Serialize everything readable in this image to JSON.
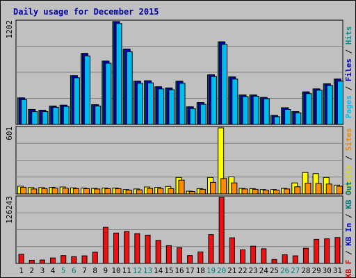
{
  "chart_data": {
    "type": "bar",
    "title": "Daily usage for December 2015",
    "days": [
      {
        "label": "1",
        "weekend": false
      },
      {
        "label": "2",
        "weekend": false
      },
      {
        "label": "3",
        "weekend": false
      },
      {
        "label": "4",
        "weekend": false
      },
      {
        "label": "5",
        "weekend": true
      },
      {
        "label": "6",
        "weekend": true
      },
      {
        "label": "7",
        "weekend": false
      },
      {
        "label": "8",
        "weekend": false
      },
      {
        "label": "9",
        "weekend": false
      },
      {
        "label": "10",
        "weekend": false
      },
      {
        "label": "11",
        "weekend": false
      },
      {
        "label": "12",
        "weekend": true
      },
      {
        "label": "13",
        "weekend": true
      },
      {
        "label": "14",
        "weekend": false
      },
      {
        "label": "15",
        "weekend": false
      },
      {
        "label": "16",
        "weekend": false
      },
      {
        "label": "17",
        "weekend": false
      },
      {
        "label": "18",
        "weekend": false
      },
      {
        "label": "19",
        "weekend": true
      },
      {
        "label": "20",
        "weekend": true
      },
      {
        "label": "21",
        "weekend": false
      },
      {
        "label": "22",
        "weekend": false
      },
      {
        "label": "23",
        "weekend": false
      },
      {
        "label": "24",
        "weekend": false
      },
      {
        "label": "25",
        "weekend": false
      },
      {
        "label": "26",
        "weekend": true
      },
      {
        "label": "27",
        "weekend": true
      },
      {
        "label": "28",
        "weekend": false
      },
      {
        "label": "29",
        "weekend": false
      },
      {
        "label": "30",
        "weekend": false
      },
      {
        "label": "31",
        "weekend": false
      }
    ],
    "panels": [
      {
        "id": "hits",
        "max_label": "1202",
        "ymax": 1202,
        "legend": [
          {
            "text": "Pages",
            "color": "#00bbee"
          },
          {
            "text": " / ",
            "color": "#000000"
          },
          {
            "text": "Files",
            "color": "#0000cc"
          },
          {
            "text": " / ",
            "color": "#000000"
          },
          {
            "text": "Hits",
            "color": "#009090"
          }
        ],
        "series": [
          {
            "name": "Hits",
            "color": "#007070",
            "values": [
              310,
              175,
              165,
              215,
              225,
              570,
              830,
              230,
              740,
              1202,
              880,
              505,
              510,
              440,
              425,
              505,
              205,
              255,
              580,
              965,
              555,
              345,
              345,
              315,
              105,
              195,
              150,
              380,
              415,
              475,
              530
            ]
          },
          {
            "name": "Files",
            "color": "#0000cc",
            "values": [
              310,
              175,
              165,
              215,
              225,
              570,
              830,
              230,
              740,
              1202,
              880,
              505,
              510,
              440,
              425,
              505,
              205,
              255,
              580,
              965,
              555,
              345,
              345,
              315,
              105,
              195,
              150,
              380,
              415,
              475,
              530
            ]
          },
          {
            "name": "Pages",
            "color": "#00bbee",
            "values": [
              290,
              150,
              150,
              200,
              210,
              545,
              800,
              215,
              715,
              1180,
              850,
              480,
              485,
              415,
              405,
              480,
              185,
              235,
              560,
              935,
              530,
              325,
              330,
              300,
              90,
              175,
              135,
              360,
              400,
              455,
              505
            ]
          }
        ]
      },
      {
        "id": "visits",
        "max_label": "601",
        "ymax": 601,
        "legend": [
          {
            "text": "Visits",
            "color": "#dddd00"
          },
          {
            "text": " / ",
            "color": "#000000"
          },
          {
            "text": "Sites",
            "color": "#ee8800"
          }
        ],
        "series": [
          {
            "name": "Visits",
            "color": "#ffff00",
            "values": [
              70,
              58,
              58,
              60,
              63,
              55,
              53,
              50,
              53,
              53,
              40,
              45,
              63,
              60,
              68,
              150,
              25,
              48,
              150,
              601,
              155,
              50,
              48,
              40,
              40,
              50,
              100,
              195,
              185,
              150,
              80
            ]
          },
          {
            "name": "Sites",
            "color": "#ff8c00",
            "values": [
              60,
              45,
              48,
              53,
              52,
              48,
              48,
              45,
              48,
              48,
              35,
              37,
              50,
              50,
              48,
              125,
              22,
              42,
              105,
              140,
              100,
              45,
              42,
              35,
              35,
              45,
              65,
              98,
              95,
              90,
              70
            ]
          }
        ]
      },
      {
        "id": "kb",
        "max_label": "126243",
        "ymax": 126243,
        "legend": [
          {
            "text": "KB F",
            "color": "#cc0000"
          },
          {
            "text": " / ",
            "color": "#000000"
          },
          {
            "text": "KB In",
            "color": "#0000cc"
          },
          {
            "text": " / ",
            "color": "#000000"
          },
          {
            "text": "KB Out",
            "color": "#007070"
          }
        ],
        "series": [
          {
            "name": "KB F",
            "color": "#ee1111",
            "values": [
              17500,
              6000,
              6500,
              10500,
              15000,
              13000,
              14500,
              21500,
              69000,
              58000,
              61000,
              57000,
              54000,
              44000,
              34000,
              30000,
              15000,
              22000,
              55000,
              126243,
              49000,
              26000,
              33000,
              28000,
              7500,
              16500,
              14500,
              29000,
              46000,
              47000,
              49500
            ]
          }
        ]
      }
    ]
  }
}
